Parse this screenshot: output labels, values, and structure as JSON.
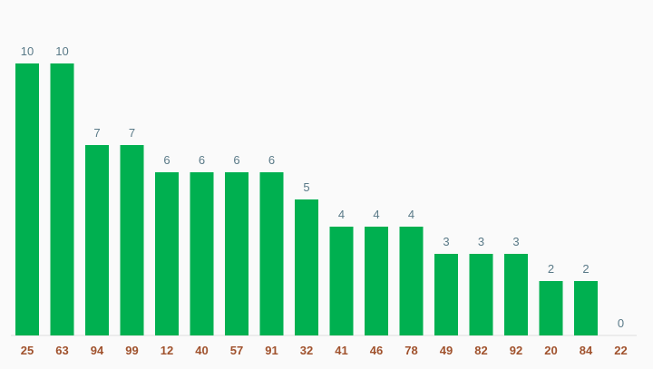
{
  "chart_data": {
    "type": "bar",
    "categories": [
      "25",
      "63",
      "94",
      "99",
      "12",
      "40",
      "57",
      "91",
      "32",
      "41",
      "46",
      "78",
      "49",
      "82",
      "92",
      "20",
      "84",
      "22"
    ],
    "values": [
      10,
      10,
      7,
      7,
      6,
      6,
      6,
      6,
      5,
      4,
      4,
      4,
      3,
      3,
      3,
      2,
      2,
      0
    ],
    "title": "",
    "xlabel": "",
    "ylabel": "",
    "ylim": [
      0,
      10
    ],
    "grid": false,
    "legend": "none",
    "bar_color": "#00b050",
    "value_label_color": "#5a7a88",
    "category_label_color": "#a0522d",
    "axis_color": "#dddddd"
  }
}
